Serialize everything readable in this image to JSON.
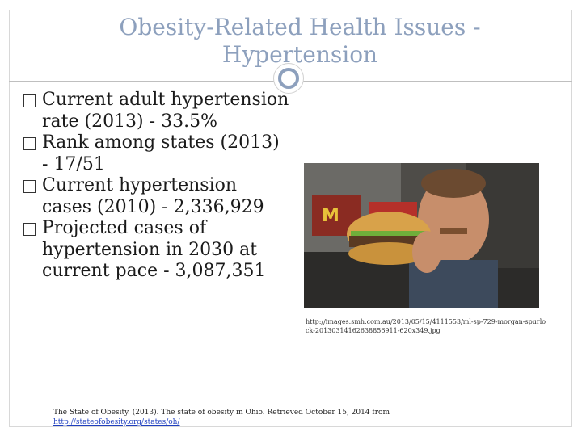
{
  "title": {
    "line1": "Obesity-Related Health Issues -",
    "line2": "Hypertension"
  },
  "bullets": [
    {
      "label": "Current adult hypertension rate (2013) -",
      "value": "33.5%"
    },
    {
      "label": "Rank among states (2013) -",
      "value": "17/51"
    },
    {
      "label": "Current hypertension cases (2010) -",
      "value": "2,336,929"
    },
    {
      "label": "Projected cases of hypertension in 2030 at current pace -",
      "value": "3,087,351"
    }
  ],
  "bullet_glyph": "box-icon",
  "photo": {
    "description_icon": "photo-man-holding-burger",
    "url": "http://images.smh.com.au/2013/05/15/4111553/ml-sp-729-morgan-spurlock-20130314162638856911-620x349.jpg"
  },
  "citation": {
    "text": "The State of Obesity. (2013). The state of obesity in Ohio. Retrieved October 15, 2014 from",
    "link": "http://stateofobesity.org/states/oh/"
  },
  "colors": {
    "title": "#8da0bd",
    "accent_ring": "#8da0bd",
    "text": "#1a1a1a",
    "link": "#1f3fbf"
  }
}
